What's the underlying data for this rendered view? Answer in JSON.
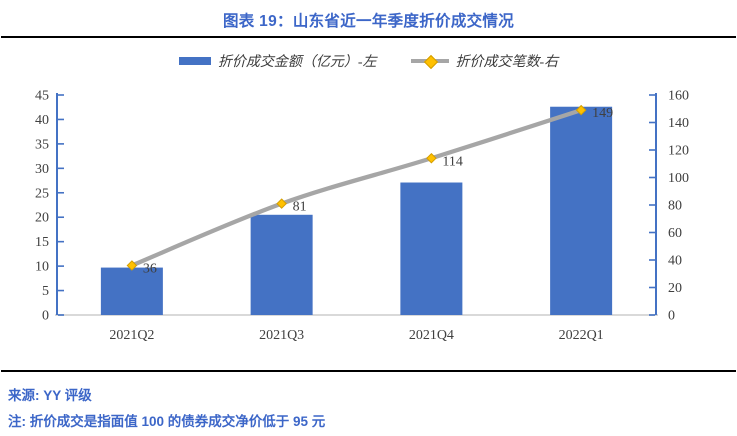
{
  "page": {
    "title": "图表 19：山东省近一年季度折价成交情况",
    "source": "来源: YY 评级",
    "note": "注: 折价成交是指面值 100 的债券成交净价低于 95 元"
  },
  "legend": [
    {
      "label": "折价成交金额（亿元）-左",
      "swatch": "bar",
      "color": "#4472C4"
    },
    {
      "label": "折价成交笔数-右",
      "swatch": "line-diamond",
      "line_color": "#A6A6A6",
      "marker_color": "#FFC000"
    }
  ],
  "chart_data": {
    "type": "combo-bar-line",
    "title": "图表 19：山东省近一年季度折价成交情况",
    "categories": [
      "2021Q2",
      "2021Q3",
      "2021Q4",
      "2022Q1"
    ],
    "series": [
      {
        "name": "折价成交金额（亿元）-左",
        "type": "bar",
        "axis": "left",
        "color": "#4472C4",
        "values": [
          9.7,
          20.5,
          27.1,
          42.6
        ]
      },
      {
        "name": "折价成交笔数-右",
        "type": "line",
        "axis": "right",
        "smooth": true,
        "color": "#A6A6A6",
        "marker": "diamond",
        "marker_color": "#FFC000",
        "marker_border": "#d49e00",
        "values": [
          36,
          81,
          114,
          149
        ],
        "show_data_labels": true,
        "data_label_color": "#404040"
      }
    ],
    "left_axis": {
      "min": 0,
      "max": 45,
      "step": 5,
      "axis_color": "#4472C4",
      "label_color": "#404040"
    },
    "right_axis": {
      "min": 0,
      "max": 160,
      "step": 20,
      "axis_color": "#4472C4",
      "label_color": "#404040"
    },
    "x_axis": {
      "line_color": "#D9D9D9",
      "label_color": "#404040"
    },
    "legend_position": "top",
    "grid": false
  }
}
